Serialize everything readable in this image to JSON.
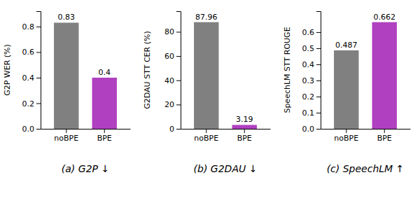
{
  "chart_data": [
    {
      "type": "bar",
      "title": "(a) G2P ↓",
      "ylabel": "G2P WER (%)",
      "categories": [
        "noBPE",
        "BPE"
      ],
      "values": [
        0.83,
        0.4
      ],
      "colors": [
        "#808080",
        "#b040c0"
      ],
      "ylim": [
        0,
        0.92
      ],
      "yticks": [
        {
          "value": 0,
          "label": "0.0"
        },
        0.2,
        0.4,
        0.6,
        0.8
      ],
      "data_labels": true
    },
    {
      "type": "bar",
      "title": "(b) G2DAU ↓",
      "ylabel": "G2DAU STT CER (%)",
      "categories": [
        "noBPE",
        "BPE"
      ],
      "values": [
        87.96,
        3.19
      ],
      "colors": [
        "#808080",
        "#b040c0"
      ],
      "ylim": [
        0,
        97
      ],
      "yticks": [
        0,
        20,
        40,
        60,
        80
      ],
      "data_labels": true
    },
    {
      "type": "bar",
      "title": "(c) SpeechLM ↑",
      "ylabel": "SpeechLM STT ROUGE",
      "categories": [
        "noBPE",
        "BPE"
      ],
      "values": [
        0.487,
        0.662
      ],
      "colors": [
        "#808080",
        "#b040c0"
      ],
      "ylim": [
        0,
        0.73
      ],
      "yticks": [
        {
          "value": 0,
          "label": "0.0"
        },
        0.1,
        0.2,
        0.3,
        0.4,
        0.5,
        0.6
      ],
      "data_labels": true
    }
  ]
}
